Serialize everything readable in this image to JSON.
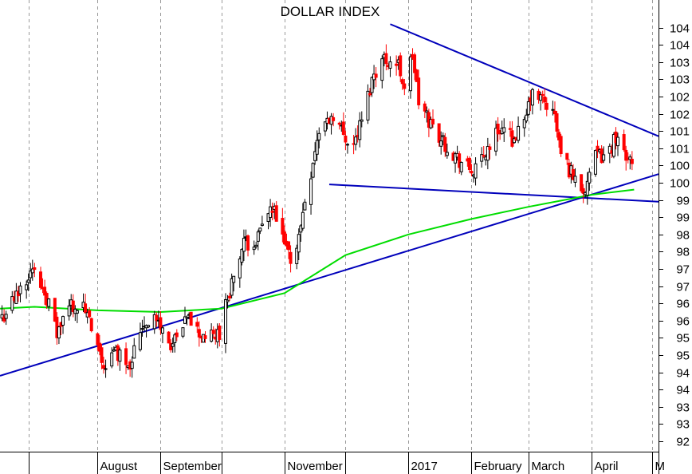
{
  "chart_data": {
    "type": "candlestick",
    "title": "DOLLAR INDEX",
    "xlabel": "",
    "ylabel": "",
    "ylim": [
      91.7,
      104.8
    ],
    "x_range": [
      "2016-06-14",
      "2017-05-04"
    ],
    "grid": {
      "x": true,
      "y": false
    },
    "y_axis_side": "right",
    "y_ticks": [
      {
        "value": 92.0,
        "label": "92"
      },
      {
        "value": 92.5,
        "label": "93"
      },
      {
        "value": 93.0,
        "label": "93"
      },
      {
        "value": 93.5,
        "label": "94"
      },
      {
        "value": 94.0,
        "label": "94"
      },
      {
        "value": 94.5,
        "label": "95"
      },
      {
        "value": 95.0,
        "label": "95"
      },
      {
        "value": 95.5,
        "label": "96"
      },
      {
        "value": 96.0,
        "label": "96"
      },
      {
        "value": 96.5,
        "label": "97"
      },
      {
        "value": 97.0,
        "label": "97"
      },
      {
        "value": 97.5,
        "label": "98"
      },
      {
        "value": 98.0,
        "label": "98"
      },
      {
        "value": 98.5,
        "label": "99"
      },
      {
        "value": 99.0,
        "label": "99"
      },
      {
        "value": 99.5,
        "label": "100"
      },
      {
        "value": 100.0,
        "label": "100"
      },
      {
        "value": 100.5,
        "label": "101"
      },
      {
        "value": 101.0,
        "label": "101"
      },
      {
        "value": 101.5,
        "label": "102"
      },
      {
        "value": 102.0,
        "label": "102"
      },
      {
        "value": 102.5,
        "label": "103"
      },
      {
        "value": 103.0,
        "label": "103"
      },
      {
        "value": 103.5,
        "label": "104"
      },
      {
        "value": 104.0,
        "label": "104"
      }
    ],
    "x_ticks": [
      {
        "label": "",
        "date": "2016-06-28"
      },
      {
        "label": "August",
        "date": "2016-08-01"
      },
      {
        "label": "September",
        "date": "2016-09-01"
      },
      {
        "label": "",
        "date": "2016-10-01"
      },
      {
        "label": "November",
        "date": "2016-11-01"
      },
      {
        "label": "",
        "date": "2016-12-01"
      },
      {
        "label": "2017",
        "date": "2017-01-01"
      },
      {
        "label": "February",
        "date": "2017-02-01"
      },
      {
        "label": "March",
        "date": "2017-03-01"
      },
      {
        "label": "April",
        "date": "2017-04-01"
      },
      {
        "label": "M",
        "date": "2017-05-01"
      }
    ],
    "candle_colors": {
      "up": "#000000",
      "down": "#ff0000"
    },
    "anchors": [
      [
        "2016-06-15",
        95.6
      ],
      [
        "2016-06-22",
        96.2
      ],
      [
        "2016-06-29",
        97.0
      ],
      [
        "2016-07-06",
        96.4
      ],
      [
        "2016-07-12",
        95.1
      ],
      [
        "2016-07-19",
        96.0
      ],
      [
        "2016-07-26",
        95.8
      ],
      [
        "2016-08-01",
        94.6
      ],
      [
        "2016-08-04",
        94.2
      ],
      [
        "2016-08-10",
        94.6
      ],
      [
        "2016-08-17",
        94.3
      ],
      [
        "2016-08-23",
        95.4
      ],
      [
        "2016-08-29",
        95.6
      ],
      [
        "2016-09-06",
        94.8
      ],
      [
        "2016-09-09",
        94.9
      ],
      [
        "2016-09-15",
        95.6
      ],
      [
        "2016-09-20",
        95.1
      ],
      [
        "2016-09-27",
        95.0
      ],
      [
        "2016-09-30",
        95.2
      ],
      [
        "2016-10-05",
        96.4
      ],
      [
        "2016-10-12",
        97.7
      ],
      [
        "2016-10-19",
        97.9
      ],
      [
        "2016-10-25",
        98.7
      ],
      [
        "2016-10-27",
        98.6
      ],
      [
        "2016-10-31",
        97.8
      ],
      [
        "2016-11-04",
        97.3
      ],
      [
        "2016-11-08",
        97.9
      ],
      [
        "2016-11-11",
        99.0
      ],
      [
        "2016-11-18",
        101.0
      ],
      [
        "2016-11-25",
        101.5
      ],
      [
        "2016-11-30",
        100.9
      ],
      [
        "2016-12-05",
        100.6
      ],
      [
        "2016-12-09",
        101.3
      ],
      [
        "2016-12-15",
        102.7
      ],
      [
        "2016-12-20",
        103.1
      ],
      [
        "2016-12-27",
        102.9
      ],
      [
        "2016-12-30",
        102.3
      ],
      [
        "2017-01-03",
        103.2
      ],
      [
        "2017-01-06",
        101.8
      ],
      [
        "2017-01-11",
        101.3
      ],
      [
        "2017-01-18",
        100.7
      ],
      [
        "2017-01-25",
        100.2
      ],
      [
        "2017-01-30",
        99.9
      ],
      [
        "2017-02-03",
        99.8
      ],
      [
        "2017-02-09",
        100.5
      ],
      [
        "2017-02-15",
        101.1
      ],
      [
        "2017-02-21",
        100.8
      ],
      [
        "2017-02-27",
        101.1
      ],
      [
        "2017-03-02",
        102.0
      ],
      [
        "2017-03-08",
        101.9
      ],
      [
        "2017-03-14",
        101.4
      ],
      [
        "2017-03-17",
        100.3
      ],
      [
        "2017-03-22",
        99.8
      ],
      [
        "2017-03-28",
        99.3
      ],
      [
        "2017-04-03",
        100.2
      ],
      [
        "2017-04-10",
        100.4
      ],
      [
        "2017-04-13",
        100.9
      ],
      [
        "2017-04-18",
        100.3
      ],
      [
        "2017-04-21",
        100.3
      ]
    ],
    "series": [
      {
        "name": "",
        "type": "line",
        "color": "#00dd00",
        "points": [
          [
            "2016-06-14",
            95.85
          ],
          [
            "2016-07-01",
            95.9
          ],
          [
            "2016-08-01",
            95.8
          ],
          [
            "2016-09-01",
            95.75
          ],
          [
            "2016-10-01",
            95.85
          ],
          [
            "2016-11-01",
            96.3
          ],
          [
            "2016-12-01",
            97.4
          ],
          [
            "2017-01-01",
            98.0
          ],
          [
            "2017-02-01",
            98.45
          ],
          [
            "2017-03-01",
            98.8
          ],
          [
            "2017-04-01",
            99.15
          ],
          [
            "2017-04-22",
            99.3
          ]
        ]
      }
    ],
    "trendlines": [
      {
        "color": "#0000bb",
        "points": [
          [
            "2016-06-14",
            93.9
          ],
          [
            "2017-05-04",
            99.75
          ]
        ]
      },
      {
        "color": "#0000bb",
        "points": [
          [
            "2016-12-23",
            104.1
          ],
          [
            "2017-05-04",
            100.85
          ]
        ]
      },
      {
        "color": "#0000bb",
        "points": [
          [
            "2016-11-23",
            99.45
          ],
          [
            "2017-05-04",
            98.95
          ]
        ]
      }
    ]
  }
}
